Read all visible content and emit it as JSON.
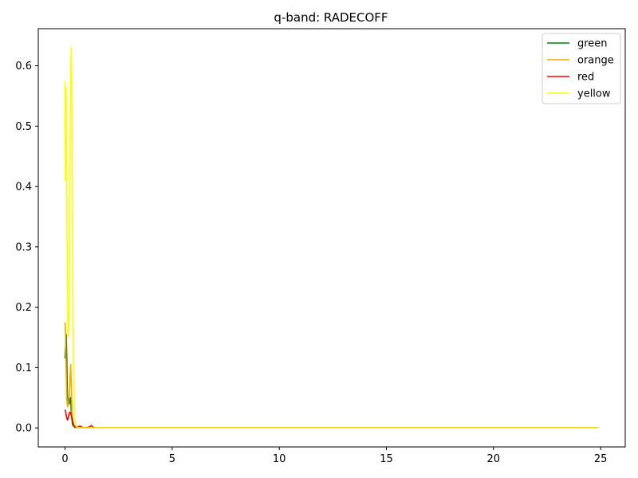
{
  "chart_data": {
    "type": "line",
    "title": "q-band: RADECOFF",
    "xlabel": "",
    "ylabel": "",
    "xlim": [
      -1.25,
      26.15
    ],
    "ylim": [
      -0.0315,
      0.6615
    ],
    "xticks": [
      0,
      5,
      10,
      15,
      20,
      25
    ],
    "yticks": [
      0.0,
      0.1,
      0.2,
      0.3,
      0.4,
      0.5,
      0.6
    ],
    "xtick_labels": [
      "0",
      "5",
      "10",
      "15",
      "20",
      "25"
    ],
    "ytick_labels": [
      "0.0",
      "0.1",
      "0.2",
      "0.3",
      "0.4",
      "0.5",
      "0.6"
    ],
    "grid": false,
    "legend_position": "top-right",
    "series": [
      {
        "name": "green",
        "color": "#008000",
        "points": [
          [
            0,
            0.115
          ],
          [
            0.02,
            0.13
          ],
          [
            0.05,
            0.155
          ],
          [
            0.08,
            0.12
          ],
          [
            0.1,
            0.07
          ],
          [
            0.12,
            0.045
          ],
          [
            0.15,
            0.04
          ],
          [
            0.18,
            0.045
          ],
          [
            0.2,
            0.04
          ],
          [
            0.23,
            0.048
          ],
          [
            0.26,
            0.05
          ],
          [
            0.3,
            0.02
          ],
          [
            0.35,
            0.005
          ],
          [
            0.45,
            0.001
          ],
          [
            0.6,
            0.0
          ],
          [
            0.9,
            0.0
          ],
          [
            1.2,
            0.0
          ],
          [
            2,
            0.0
          ],
          [
            5,
            0.0
          ],
          [
            10,
            0.0
          ],
          [
            15,
            0.0
          ],
          [
            20,
            0.0
          ],
          [
            24.9,
            0.0
          ]
        ]
      },
      {
        "name": "orange",
        "color": "#ffa500",
        "points": [
          [
            0,
            0.175
          ],
          [
            0.02,
            0.16
          ],
          [
            0.04,
            0.12
          ],
          [
            0.06,
            0.08
          ],
          [
            0.08,
            0.05
          ],
          [
            0.1,
            0.04
          ],
          [
            0.13,
            0.035
          ],
          [
            0.16,
            0.04
          ],
          [
            0.2,
            0.055
          ],
          [
            0.23,
            0.08
          ],
          [
            0.26,
            0.105
          ],
          [
            0.3,
            0.06
          ],
          [
            0.33,
            0.02
          ],
          [
            0.4,
            0.004
          ],
          [
            0.5,
            0.001
          ],
          [
            0.6,
            0.0
          ],
          [
            0.9,
            0.0
          ],
          [
            1.2,
            0.0
          ],
          [
            2,
            0.0
          ],
          [
            5,
            0.0
          ],
          [
            10,
            0.0
          ],
          [
            15,
            0.0
          ],
          [
            20,
            0.0
          ],
          [
            24.9,
            0.0
          ]
        ]
      },
      {
        "name": "red",
        "color": "#ff0000",
        "points": [
          [
            0,
            0.03
          ],
          [
            0.02,
            0.028
          ],
          [
            0.05,
            0.022
          ],
          [
            0.08,
            0.017
          ],
          [
            0.11,
            0.013
          ],
          [
            0.14,
            0.015
          ],
          [
            0.17,
            0.02
          ],
          [
            0.2,
            0.025
          ],
          [
            0.23,
            0.026
          ],
          [
            0.26,
            0.024
          ],
          [
            0.3,
            0.02
          ],
          [
            0.35,
            0.012
          ],
          [
            0.4,
            0.005
          ],
          [
            0.45,
            0.002
          ],
          [
            0.5,
            0.001
          ],
          [
            0.6,
            0.0015
          ],
          [
            0.7,
            0.003
          ],
          [
            0.8,
            0.001
          ],
          [
            0.9,
            0.0
          ],
          [
            1.0,
            0.0005
          ],
          [
            1.1,
            0.001
          ],
          [
            1.2,
            0.003
          ],
          [
            1.25,
            0.004
          ],
          [
            1.3,
            0.001
          ],
          [
            1.4,
            0.0
          ],
          [
            2,
            0.0
          ],
          [
            5,
            0.0
          ],
          [
            10,
            0.0
          ],
          [
            15,
            0.0
          ],
          [
            20,
            0.0
          ],
          [
            24.9,
            0.0
          ]
        ]
      },
      {
        "name": "yellow",
        "color": "#ffff00",
        "points": [
          [
            0,
            0.575
          ],
          [
            0.01,
            0.45
          ],
          [
            0.02,
            0.41
          ],
          [
            0.03,
            0.5
          ],
          [
            0.05,
            0.565
          ],
          [
            0.07,
            0.48
          ],
          [
            0.09,
            0.34
          ],
          [
            0.11,
            0.22
          ],
          [
            0.13,
            0.16
          ],
          [
            0.15,
            0.15
          ],
          [
            0.17,
            0.16
          ],
          [
            0.19,
            0.2
          ],
          [
            0.21,
            0.3
          ],
          [
            0.23,
            0.42
          ],
          [
            0.25,
            0.54
          ],
          [
            0.27,
            0.6
          ],
          [
            0.29,
            0.63
          ],
          [
            0.31,
            0.58
          ],
          [
            0.33,
            0.42
          ],
          [
            0.36,
            0.25
          ],
          [
            0.39,
            0.12
          ],
          [
            0.42,
            0.05
          ],
          [
            0.46,
            0.015
          ],
          [
            0.5,
            0.005
          ],
          [
            0.55,
            0.001
          ],
          [
            0.6,
            0.0
          ],
          [
            0.9,
            0.0
          ],
          [
            1.2,
            0.0
          ],
          [
            2,
            0.0
          ],
          [
            5,
            0.0
          ],
          [
            10,
            0.0
          ],
          [
            15,
            0.0
          ],
          [
            20,
            0.0
          ],
          [
            24.9,
            0.0
          ]
        ]
      }
    ]
  }
}
